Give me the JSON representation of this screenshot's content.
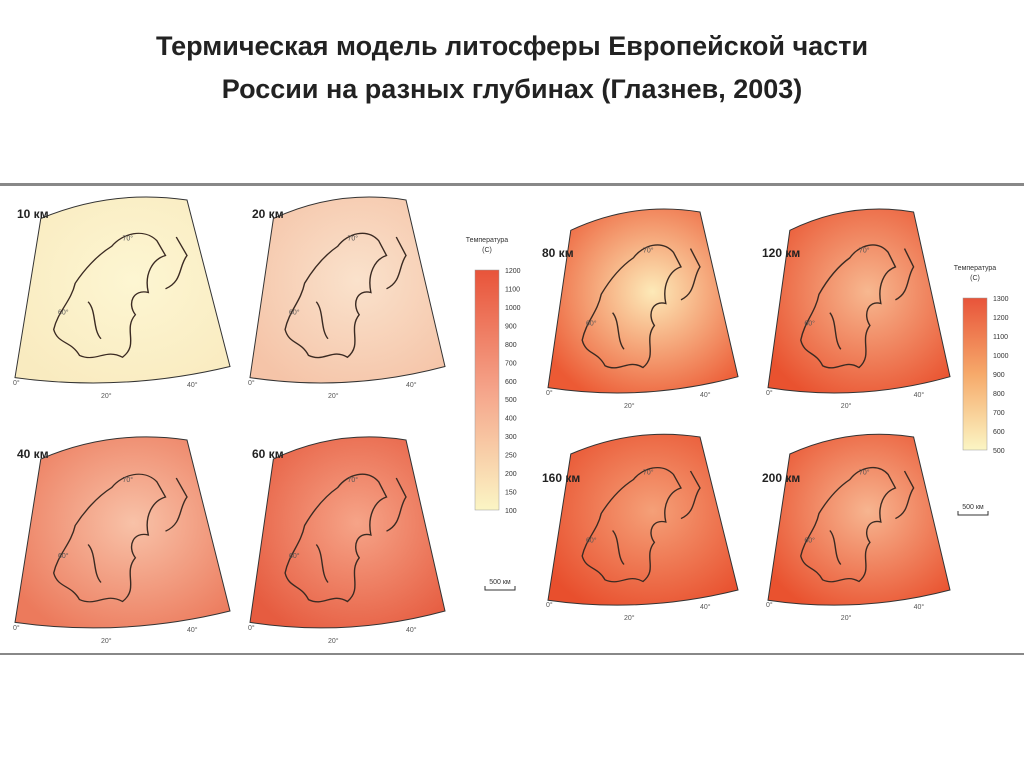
{
  "title": [
    "Термическая модель литосферы Европейской части",
    "России на разных глубинах (Глазнев, 2003)"
  ],
  "panels": [
    "10 км",
    "20 км",
    "40 км",
    "60 км",
    "80 км",
    "120 км",
    "160 км",
    "200 км"
  ],
  "graticule": {
    "lat_70": "70°",
    "lat_60": "60°",
    "lon_0": "0°",
    "lon_20": "20°",
    "lon_40": "40°"
  },
  "legend_left": {
    "title": "Температура",
    "unit": "(С)",
    "labels": [
      "1200",
      "1100",
      "1000",
      "900",
      "800",
      "700",
      "600",
      "500",
      "400",
      "300",
      "250",
      "200",
      "150",
      "100"
    ]
  },
  "legend_right": {
    "title": "Температура",
    "unit": "(С)",
    "labels": [
      "1300",
      "1200",
      "1100",
      "1000",
      "900",
      "800",
      "700",
      "600",
      "500"
    ]
  },
  "scale_bar": "500 км"
}
